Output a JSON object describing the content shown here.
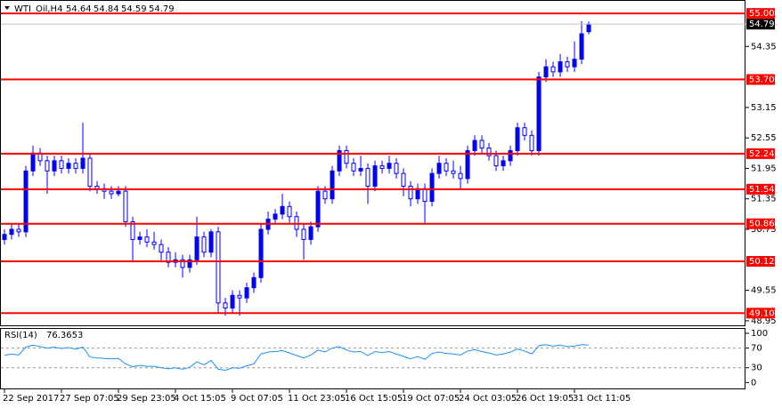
{
  "chart_data": {
    "type": "candlestick",
    "symbol": "WTI_Oil,H4",
    "up_color": "#0000ff",
    "down_color": "#0000ff",
    "ohlc": [
      [
        50.55,
        50.75,
        50.45,
        50.65
      ],
      [
        50.65,
        50.85,
        50.55,
        50.75
      ],
      [
        50.75,
        50.85,
        50.6,
        50.7
      ],
      [
        50.7,
        52.0,
        50.6,
        51.9
      ],
      [
        51.9,
        52.4,
        51.8,
        52.25
      ],
      [
        52.25,
        52.35,
        52.0,
        52.1
      ],
      [
        52.1,
        52.2,
        51.45,
        51.9
      ],
      [
        51.9,
        52.2,
        51.8,
        52.1
      ],
      [
        52.1,
        52.2,
        51.85,
        51.95
      ],
      [
        51.95,
        52.15,
        51.85,
        52.05
      ],
      [
        52.05,
        52.15,
        51.85,
        51.95
      ],
      [
        51.95,
        52.85,
        51.85,
        52.15
      ],
      [
        52.15,
        52.25,
        51.5,
        51.6
      ],
      [
        51.6,
        51.7,
        51.45,
        51.55
      ],
      [
        51.55,
        51.65,
        51.35,
        51.5
      ],
      [
        51.5,
        51.6,
        51.35,
        51.45
      ],
      [
        51.45,
        51.6,
        51.4,
        51.5
      ],
      [
        51.5,
        51.6,
        50.8,
        50.9
      ],
      [
        50.9,
        51.0,
        50.1,
        50.55
      ],
      [
        50.55,
        50.7,
        50.45,
        50.6
      ],
      [
        50.6,
        50.75,
        50.4,
        50.5
      ],
      [
        50.5,
        50.7,
        50.35,
        50.45
      ],
      [
        50.45,
        50.55,
        50.1,
        50.3
      ],
      [
        50.3,
        50.4,
        50.0,
        50.1
      ],
      [
        50.1,
        50.3,
        50.0,
        50.15
      ],
      [
        50.15,
        50.25,
        49.8,
        50.0
      ],
      [
        50.0,
        50.25,
        49.9,
        50.15
      ],
      [
        50.15,
        51.0,
        50.05,
        50.6
      ],
      [
        50.6,
        50.7,
        50.2,
        50.3
      ],
      [
        50.3,
        50.75,
        50.2,
        50.7
      ],
      [
        50.7,
        50.8,
        49.1,
        49.3
      ],
      [
        49.3,
        49.4,
        49.05,
        49.2
      ],
      [
        49.2,
        49.55,
        49.1,
        49.45
      ],
      [
        49.45,
        49.55,
        49.05,
        49.4
      ],
      [
        49.4,
        49.7,
        49.3,
        49.6
      ],
      [
        49.6,
        49.9,
        49.5,
        49.8
      ],
      [
        49.8,
        50.85,
        49.7,
        50.75
      ],
      [
        50.75,
        51.1,
        50.65,
        50.95
      ],
      [
        50.95,
        51.15,
        50.85,
        51.05
      ],
      [
        51.05,
        51.45,
        50.95,
        51.2
      ],
      [
        51.2,
        51.3,
        50.85,
        51.0
      ],
      [
        51.0,
        51.1,
        50.6,
        50.75
      ],
      [
        50.75,
        50.85,
        50.15,
        50.55
      ],
      [
        50.55,
        50.9,
        50.45,
        50.8
      ],
      [
        50.8,
        51.6,
        50.7,
        51.5
      ],
      [
        51.5,
        51.6,
        51.25,
        51.35
      ],
      [
        51.35,
        52.0,
        51.25,
        51.9
      ],
      [
        51.9,
        52.4,
        51.8,
        52.3
      ],
      [
        52.3,
        52.4,
        51.95,
        52.05
      ],
      [
        52.05,
        52.15,
        51.8,
        51.9
      ],
      [
        51.9,
        52.2,
        51.8,
        51.95
      ],
      [
        51.95,
        52.05,
        51.25,
        51.6
      ],
      [
        51.6,
        52.1,
        51.5,
        52.0
      ],
      [
        52.0,
        52.1,
        51.85,
        51.95
      ],
      [
        51.95,
        52.2,
        51.85,
        52.05
      ],
      [
        52.05,
        52.15,
        51.75,
        51.85
      ],
      [
        51.85,
        51.95,
        51.4,
        51.6
      ],
      [
        51.6,
        51.7,
        51.2,
        51.35
      ],
      [
        51.35,
        51.65,
        51.25,
        51.55
      ],
      [
        51.55,
        51.65,
        50.85,
        51.3
      ],
      [
        51.3,
        51.95,
        51.2,
        51.85
      ],
      [
        51.85,
        52.2,
        51.75,
        52.05
      ],
      [
        52.05,
        52.15,
        51.8,
        51.9
      ],
      [
        51.9,
        52.1,
        51.75,
        51.85
      ],
      [
        51.85,
        52.0,
        51.55,
        51.75
      ],
      [
        51.75,
        52.4,
        51.65,
        52.3
      ],
      [
        52.3,
        52.6,
        52.2,
        52.5
      ],
      [
        52.5,
        52.6,
        52.25,
        52.35
      ],
      [
        52.35,
        52.45,
        52.1,
        52.2
      ],
      [
        52.2,
        52.3,
        51.9,
        52.0
      ],
      [
        52.0,
        52.2,
        51.9,
        52.1
      ],
      [
        52.1,
        52.4,
        52.0,
        52.3
      ],
      [
        52.3,
        52.85,
        52.2,
        52.75
      ],
      [
        52.75,
        52.85,
        52.5,
        52.6
      ],
      [
        52.6,
        52.7,
        52.2,
        52.3
      ],
      [
        52.3,
        53.85,
        52.2,
        53.75
      ],
      [
        53.75,
        54.1,
        53.65,
        53.95
      ],
      [
        53.95,
        54.05,
        53.75,
        53.85
      ],
      [
        53.85,
        54.2,
        53.75,
        54.05
      ],
      [
        54.05,
        54.15,
        53.85,
        53.95
      ],
      [
        53.95,
        54.45,
        53.85,
        54.1
      ],
      [
        54.1,
        54.85,
        54.0,
        54.6
      ],
      [
        54.64,
        54.84,
        54.59,
        54.79
      ]
    ],
    "ylim": [
      48.86,
      55.23
    ],
    "yticks": [
      54.35,
      53.15,
      52.55,
      51.95,
      51.35,
      50.75,
      49.55,
      48.95
    ],
    "levels": [
      {
        "value": 55,
        "label": "55.00"
      },
      {
        "value": 53.7,
        "label": "53.70"
      },
      {
        "value": 52.24,
        "label": "52.24"
      },
      {
        "value": 51.54,
        "label": "51.54"
      },
      {
        "value": 50.86,
        "label": "50.86"
      },
      {
        "value": 50.12,
        "label": "50.12"
      },
      {
        "value": 49.1,
        "label": "49.10"
      }
    ],
    "level_color": "#ff0000",
    "xticks": [
      {
        "value": 0,
        "label": "22 Sep 2017"
      },
      {
        "value": 8,
        "label": "27 Sep 07:05"
      },
      {
        "value": 16,
        "label": "29 Sep 23:05"
      },
      {
        "value": 24,
        "label": "4 Oct 15:05"
      },
      {
        "value": 32,
        "label": "9 Oct 07:05"
      },
      {
        "value": 40,
        "label": "11 Oct 23:05"
      },
      {
        "value": 48,
        "label": "16 Oct 15:05"
      },
      {
        "value": 56,
        "label": "19 Oct 07:05"
      },
      {
        "value": 64,
        "label": "24 Oct 03:05"
      },
      {
        "value": 72,
        "label": "26 Oct 19:05"
      },
      {
        "value": 80,
        "label": "31 Oct 11:05"
      }
    ],
    "rsi": {
      "name": "RSI(14)",
      "color": "#1e90ff",
      "values": [
        55,
        58,
        56,
        72,
        76,
        73,
        70,
        72,
        69,
        71,
        68,
        72,
        52,
        50,
        49,
        48,
        49,
        38,
        32,
        35,
        33,
        33,
        30,
        28,
        30,
        27,
        31,
        42,
        36,
        45,
        27,
        25,
        30,
        29,
        34,
        38,
        58,
        62,
        63,
        65,
        60,
        55,
        50,
        56,
        66,
        62,
        70,
        73,
        66,
        62,
        63,
        55,
        63,
        61,
        63,
        58,
        53,
        48,
        53,
        47,
        59,
        62,
        59,
        58,
        56,
        64,
        67,
        63,
        60,
        56,
        58,
        62,
        68,
        64,
        58,
        75,
        77,
        74,
        76,
        73,
        74,
        77,
        76.3653
      ],
      "ylim": [
        -12,
        109
      ],
      "yticks": [
        100,
        70,
        30,
        0
      ],
      "levels": [
        70,
        30
      ]
    }
  }
}
